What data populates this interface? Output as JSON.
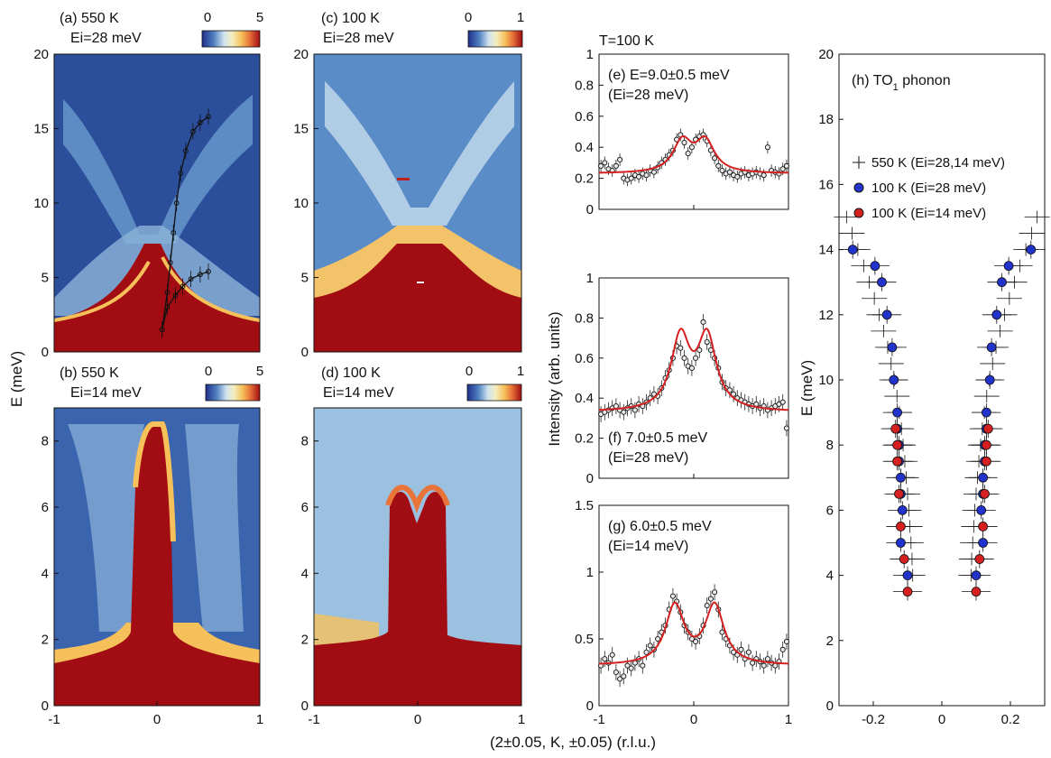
{
  "colors": {
    "fit_line": "#d62020",
    "marker_550K": "#111111",
    "marker_100K_28": "#2233cc",
    "marker_100K_14": "#d62020",
    "colormap": [
      "#1f2f8a",
      "#2f52a3",
      "#4f7fc0",
      "#8db4d9",
      "#cfe3ef",
      "#f3eec0",
      "#f6c15a",
      "#e8743a",
      "#c21f1f",
      "#a10d12"
    ]
  },
  "common_xlabel": "(2±0.05, K, ±0.05) (r.l.u.)",
  "left_ylabel": "E (meV)",
  "middle_ylabel": "Intensity (arb. units)",
  "right_ylabel": "E (meV)",
  "middle_header": "T=100 K",
  "colorbars": [
    {
      "lo": "0",
      "hi": "5"
    },
    {
      "lo": "0",
      "hi": "1"
    },
    {
      "lo": "0",
      "hi": "5"
    },
    {
      "lo": "0",
      "hi": "1"
    }
  ],
  "map_panels": [
    {
      "label": "(a) 550 K",
      "sub": "Ei=28 meV",
      "xticks": [],
      "yticks": [
        "0",
        "5",
        "10",
        "15",
        "20"
      ]
    },
    {
      "label": "(c) 100 K",
      "sub": "Ei=28 meV",
      "xticks": [],
      "yticks": [
        "0",
        "5",
        "10",
        "15",
        "20"
      ]
    },
    {
      "label": "(b) 550 K",
      "sub": "Ei=14 meV",
      "xticks": [
        "-1",
        "0",
        "1"
      ],
      "yticks": [
        "0",
        "2",
        "4",
        "6",
        "8"
      ]
    },
    {
      "label": "(d) 100 K",
      "sub": "Ei=14 meV",
      "xticks": [
        "-1",
        "0",
        "1"
      ],
      "yticks": [
        "0",
        "2",
        "4",
        "6",
        "8"
      ]
    }
  ],
  "chart_data": [
    {
      "type": "heatmap",
      "panel": "a",
      "title": "(a) 550 K",
      "subtitle": "Ei=28 meV",
      "xlim": [
        -1,
        1
      ],
      "ylim": [
        0,
        20
      ],
      "colorbar_range": [
        0,
        5
      ],
      "overlay_points_pos_branch_upper": [
        [
          0.05,
          1.5
        ],
        [
          0.1,
          4
        ],
        [
          0.13,
          6
        ],
        [
          0.16,
          8
        ],
        [
          0.19,
          10
        ],
        [
          0.23,
          12
        ],
        [
          0.28,
          13.5
        ],
        [
          0.35,
          14.8
        ],
        [
          0.42,
          15.4
        ],
        [
          0.5,
          15.8
        ]
      ],
      "overlay_points_pos_branch_lower": [
        [
          0.05,
          1.5
        ],
        [
          0.1,
          3
        ],
        [
          0.18,
          3.8
        ],
        [
          0.25,
          4.4
        ],
        [
          0.33,
          4.9
        ],
        [
          0.42,
          5.2
        ],
        [
          0.5,
          5.4
        ]
      ]
    },
    {
      "type": "heatmap",
      "panel": "c",
      "title": "(c) 100 K",
      "subtitle": "Ei=28 meV",
      "xlim": [
        -1,
        1
      ],
      "ylim": [
        0,
        20
      ],
      "colorbar_range": [
        0,
        1
      ]
    },
    {
      "type": "heatmap",
      "panel": "b",
      "title": "(b) 550 K",
      "subtitle": "Ei=14 meV",
      "xlim": [
        -1,
        1
      ],
      "ylim": [
        0,
        9
      ],
      "colorbar_range": [
        0,
        5
      ]
    },
    {
      "type": "heatmap",
      "panel": "d",
      "title": "(d) 100 K",
      "subtitle": "Ei=14 meV",
      "xlim": [
        -1,
        1
      ],
      "ylim": [
        0,
        9
      ],
      "colorbar_range": [
        0,
        1
      ]
    },
    {
      "type": "scatter",
      "panel": "e",
      "title": "(e) E=9.0±0.5 meV",
      "subtitle": "(Ei=28 meV)",
      "xlim": [
        -1,
        1
      ],
      "ylim": [
        0,
        1
      ],
      "yticks": [
        "0",
        "0.2",
        "0.4",
        "0.6",
        "0.8",
        "1"
      ],
      "xticks": [],
      "x": [
        -0.98,
        -0.94,
        -0.9,
        -0.86,
        -0.82,
        -0.78,
        -0.74,
        -0.7,
        -0.66,
        -0.62,
        -0.58,
        -0.54,
        -0.5,
        -0.46,
        -0.42,
        -0.38,
        -0.34,
        -0.3,
        -0.26,
        -0.22,
        -0.18,
        -0.14,
        -0.1,
        -0.06,
        -0.02,
        0.02,
        0.06,
        0.1,
        0.14,
        0.18,
        0.22,
        0.26,
        0.3,
        0.34,
        0.38,
        0.42,
        0.46,
        0.5,
        0.54,
        0.58,
        0.62,
        0.66,
        0.7,
        0.74,
        0.78,
        0.82,
        0.86,
        0.9,
        0.94,
        0.98
      ],
      "y": [
        0.28,
        0.3,
        0.26,
        0.25,
        0.28,
        0.32,
        0.2,
        0.19,
        0.2,
        0.22,
        0.21,
        0.23,
        0.22,
        0.25,
        0.24,
        0.27,
        0.3,
        0.32,
        0.35,
        0.38,
        0.45,
        0.48,
        0.43,
        0.36,
        0.4,
        0.45,
        0.47,
        0.48,
        0.44,
        0.38,
        0.33,
        0.28,
        0.25,
        0.23,
        0.24,
        0.22,
        0.21,
        0.23,
        0.24,
        0.22,
        0.23,
        0.24,
        0.23,
        0.22,
        0.4,
        0.25,
        0.24,
        0.23,
        0.26,
        0.28
      ],
      "fit_peaks": [
        -0.12,
        0.12
      ],
      "fit_baseline": 0.23
    },
    {
      "type": "scatter",
      "panel": "f",
      "title": "(f) 7.0±0.5 meV",
      "subtitle": "(Ei=28 meV)",
      "xlim": [
        -1,
        1
      ],
      "ylim": [
        0,
        1
      ],
      "yticks": [
        "0",
        "0.2",
        "0.4",
        "0.6",
        "0.8",
        "1"
      ],
      "xticks": [],
      "x": [
        -0.98,
        -0.94,
        -0.9,
        -0.86,
        -0.82,
        -0.78,
        -0.74,
        -0.7,
        -0.66,
        -0.62,
        -0.58,
        -0.54,
        -0.5,
        -0.46,
        -0.42,
        -0.38,
        -0.34,
        -0.3,
        -0.26,
        -0.22,
        -0.18,
        -0.14,
        -0.1,
        -0.06,
        -0.02,
        0.02,
        0.06,
        0.1,
        0.14,
        0.18,
        0.22,
        0.26,
        0.3,
        0.34,
        0.38,
        0.42,
        0.46,
        0.5,
        0.54,
        0.58,
        0.62,
        0.66,
        0.7,
        0.74,
        0.78,
        0.82,
        0.86,
        0.9,
        0.94,
        0.98
      ],
      "y": [
        0.32,
        0.33,
        0.34,
        0.35,
        0.36,
        0.34,
        0.33,
        0.35,
        0.36,
        0.34,
        0.37,
        0.36,
        0.38,
        0.4,
        0.42,
        0.41,
        0.45,
        0.5,
        0.54,
        0.6,
        0.66,
        0.65,
        0.6,
        0.56,
        0.55,
        0.6,
        0.64,
        0.78,
        0.68,
        0.64,
        0.6,
        0.55,
        0.48,
        0.45,
        0.44,
        0.42,
        0.4,
        0.39,
        0.38,
        0.37,
        0.36,
        0.37,
        0.35,
        0.36,
        0.34,
        0.35,
        0.36,
        0.37,
        0.38,
        0.25
      ],
      "fit_peaks": [
        -0.14,
        0.14
      ],
      "fit_baseline": 0.33
    },
    {
      "type": "scatter",
      "panel": "g",
      "title": "(g) 6.0±0.5 meV",
      "subtitle": "(Ei=14 meV)",
      "xlim": [
        -1,
        1
      ],
      "ylim": [
        0,
        1.5
      ],
      "yticks": [
        "0",
        "0.5",
        "1",
        "1.5"
      ],
      "xticks": [
        "-1",
        "0",
        "1"
      ],
      "x": [
        -0.98,
        -0.94,
        -0.9,
        -0.86,
        -0.82,
        -0.78,
        -0.74,
        -0.7,
        -0.66,
        -0.62,
        -0.58,
        -0.54,
        -0.5,
        -0.46,
        -0.42,
        -0.38,
        -0.34,
        -0.3,
        -0.26,
        -0.22,
        -0.18,
        -0.14,
        -0.1,
        -0.06,
        -0.02,
        0.02,
        0.06,
        0.1,
        0.14,
        0.18,
        0.22,
        0.26,
        0.3,
        0.34,
        0.38,
        0.42,
        0.46,
        0.5,
        0.54,
        0.58,
        0.62,
        0.66,
        0.7,
        0.74,
        0.78,
        0.82,
        0.86,
        0.9,
        0.94,
        0.98
      ],
      "y": [
        0.3,
        0.35,
        0.32,
        0.38,
        0.25,
        0.2,
        0.22,
        0.3,
        0.28,
        0.32,
        0.35,
        0.3,
        0.4,
        0.45,
        0.42,
        0.5,
        0.55,
        0.6,
        0.72,
        0.82,
        0.78,
        0.7,
        0.6,
        0.55,
        0.5,
        0.48,
        0.52,
        0.6,
        0.75,
        0.8,
        0.85,
        0.72,
        0.55,
        0.5,
        0.45,
        0.4,
        0.38,
        0.42,
        0.35,
        0.4,
        0.32,
        0.35,
        0.33,
        0.3,
        0.35,
        0.32,
        0.3,
        0.33,
        0.42,
        0.48
      ],
      "fit_peaks": [
        -0.2,
        0.22
      ],
      "fit_baseline": 0.3
    },
    {
      "type": "scatter",
      "panel": "h",
      "title": "(h) TO",
      "title_subscript": "1",
      "title_suffix": " phonon",
      "xlim": [
        -0.3,
        0.3
      ],
      "ylim": [
        0,
        20
      ],
      "xticks": [
        "-0.2",
        "0",
        "0.2"
      ],
      "yticks": [
        "0",
        "2",
        "4",
        "6",
        "8",
        "10",
        "12",
        "14",
        "16",
        "18",
        "20"
      ],
      "legend": [
        "550 K (Ei=28,14 meV)",
        "100 K (Ei=28 meV)",
        "100 K (Ei=14 meV)"
      ],
      "series": [
        {
          "name": "550 K (Ei=28,14 meV)",
          "marker": "plus",
          "x": [
            0.085,
            0.087,
            0.09,
            0.093,
            0.096,
            0.1,
            0.104,
            0.108,
            0.113,
            0.118,
            0.124,
            0.131,
            0.139,
            0.148,
            0.158,
            0.17,
            0.183,
            0.197,
            0.212,
            0.228,
            0.245,
            0.262,
            0.278
          ],
          "y": [
            4.0,
            4.5,
            5.0,
            5.5,
            6.0,
            6.5,
            7.0,
            7.5,
            8.0,
            8.5,
            9.0,
            9.5,
            10.0,
            10.5,
            11.0,
            11.5,
            12.0,
            12.5,
            13.0,
            13.5,
            14.0,
            14.5,
            15.0
          ]
        },
        {
          "name": "100 K (Ei=28 meV)",
          "marker": "blue",
          "x": [
            0.1,
            0.12,
            0.115,
            0.12,
            0.12,
            0.125,
            0.125,
            0.13,
            0.13,
            0.14,
            0.145,
            0.16,
            0.175,
            0.195,
            0.26
          ],
          "y": [
            4,
            5,
            6,
            6.5,
            7,
            7.5,
            8,
            8.5,
            9,
            10,
            11,
            12,
            13,
            13.5,
            14
          ]
        },
        {
          "name": "100 K (Ei=14 meV)",
          "marker": "red",
          "x": [
            0.1,
            0.11,
            0.12,
            0.125,
            0.13,
            0.13,
            0.135
          ],
          "y": [
            3.5,
            4.5,
            5.5,
            6.5,
            7.5,
            8.0,
            8.5
          ]
        }
      ]
    }
  ]
}
